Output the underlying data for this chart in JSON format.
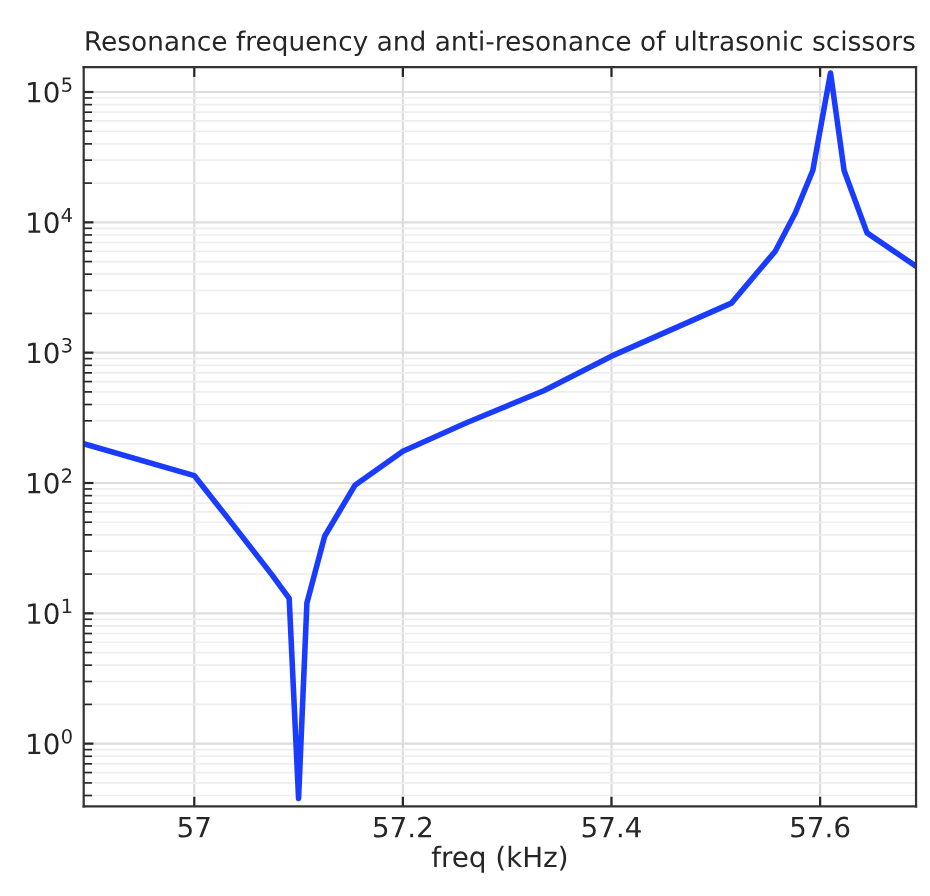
{
  "chart_data": {
    "type": "line",
    "title": "Resonance frequency and anti-resonance of ultrasonic scissors",
    "xlabel": "freq (kHz)",
    "log": "y",
    "grid": true,
    "marker": "none",
    "line_style": "solid",
    "xlim": [
      56.894,
      57.692
    ],
    "xticks": [
      57,
      57.2,
      57.4,
      57.6
    ],
    "ylim": [
      0.33,
      155000
    ],
    "yticks": [
      {
        "value": 1,
        "label": "10$^{0}$"
      },
      {
        "value": 10,
        "label": "10$^{1}$"
      },
      {
        "value": 100,
        "label": "10$^{2}$"
      },
      {
        "value": 1000,
        "label": "10$^{3}$"
      },
      {
        "value": 10000,
        "label": "10$^{4}$"
      },
      {
        "value": 100000,
        "label": "10$^{5}$"
      }
    ],
    "x": [
      56.894,
      57.0,
      57.032,
      57.074,
      57.091,
      57.1,
      57.108,
      57.125,
      57.154,
      57.2,
      57.261,
      57.335,
      57.4,
      57.515,
      57.557,
      57.576,
      57.593,
      57.61,
      57.623,
      57.645,
      57.692
    ],
    "series": [
      {
        "color": "#1a3cff",
        "values": [
          200,
          114,
          54,
          20,
          13,
          0.38,
          12,
          39,
          96,
          175,
          290,
          510,
          940,
          2400,
          6000,
          11700,
          25000,
          140000,
          25000,
          8300,
          4600
        ]
      }
    ]
  }
}
